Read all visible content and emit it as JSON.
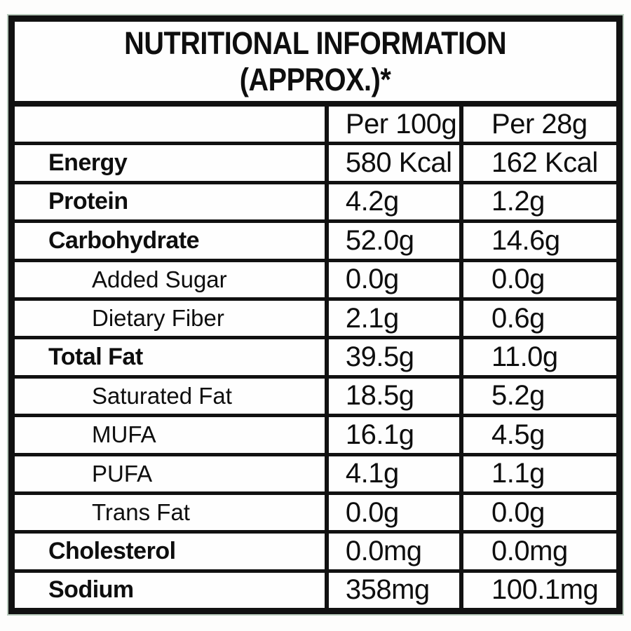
{
  "title": {
    "line1": "NUTRITIONAL INFORMATION",
    "line2": "(APPROX.)*"
  },
  "columns": {
    "label": "",
    "per100g": "Per 100g",
    "per28g": "Per 28g"
  },
  "rows": [
    {
      "label": "Energy",
      "style": "bold",
      "per100g": "580 Kcal",
      "per28g": "162 Kcal"
    },
    {
      "label": "Protein",
      "style": "bold",
      "per100g": "4.2g",
      "per28g": "1.2g"
    },
    {
      "label": "Carbohydrate",
      "style": "bold",
      "per100g": "52.0g",
      "per28g": "14.6g"
    },
    {
      "label": "Added Sugar",
      "style": "indent",
      "per100g": "0.0g",
      "per28g": "0.0g"
    },
    {
      "label": "Dietary Fiber",
      "style": "indent",
      "per100g": "2.1g",
      "per28g": "0.6g"
    },
    {
      "label": "Total Fat",
      "style": "bold",
      "per100g": "39.5g",
      "per28g": "11.0g"
    },
    {
      "label": "Saturated Fat",
      "style": "indent",
      "per100g": "18.5g",
      "per28g": "5.2g"
    },
    {
      "label": "MUFA",
      "style": "indent",
      "per100g": "16.1g",
      "per28g": "4.5g"
    },
    {
      "label": "PUFA",
      "style": "indent",
      "per100g": "4.1g",
      "per28g": "1.1g"
    },
    {
      "label": "Trans Fat",
      "style": "indent",
      "per100g": "0.0g",
      "per28g": "0.0g"
    },
    {
      "label": "Cholesterol",
      "style": "bold",
      "per100g": "0.0mg",
      "per28g": "0.0mg"
    },
    {
      "label": "Sodium",
      "style": "bold",
      "per100g": "358mg",
      "per28g": "100.1mg"
    }
  ],
  "colors": {
    "border": "#111111",
    "background": "#fdfdfc",
    "edge_tint_green": "#386e48",
    "text": "#0e0e0e"
  }
}
